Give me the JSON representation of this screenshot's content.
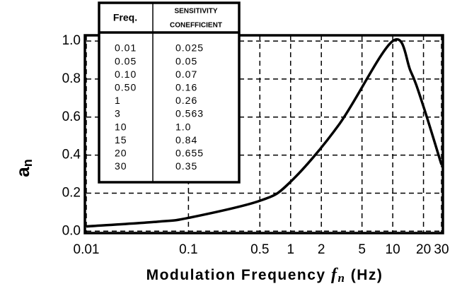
{
  "chart_data": {
    "type": "line",
    "xlabel": {
      "before": "Modulation Frequency ",
      "var": "f",
      "sub": "n",
      "after": " (Hz)"
    },
    "ylabel": {
      "main": "a",
      "sub": "n"
    },
    "x": [
      0.01,
      0.05,
      0.1,
      0.5,
      1,
      3,
      10,
      15,
      20,
      30
    ],
    "series": [
      {
        "color": "#000000",
        "values": [
          0.025,
          0.05,
          0.07,
          0.16,
          0.26,
          0.563,
          1.0,
          0.84,
          0.655,
          0.35
        ]
      }
    ],
    "xlog": true,
    "xlim": [
      0.01,
      30
    ],
    "xticks": [
      0.01,
      0.1,
      0.5,
      1,
      2,
      5,
      10,
      20,
      30
    ],
    "ylim": [
      -0.01,
      1.03
    ],
    "yticks": [
      {
        "value": 0,
        "label": "0.0"
      },
      0.2,
      0.4,
      0.6,
      0.8,
      {
        "value": 1,
        "label": "1.0"
      }
    ],
    "grid": true,
    "table": {
      "headers": [
        "Freq.",
        [
          "SENSITIVITY",
          "CONEFFICIENT"
        ]
      ],
      "rows": [
        [
          "0.01",
          "0.025"
        ],
        [
          "0.05",
          "0.05"
        ],
        [
          "0.10",
          "0.07"
        ],
        [
          "0.50",
          "0.16"
        ],
        [
          "1",
          "0.26"
        ],
        [
          "3",
          "0.563"
        ],
        [
          "10",
          "1.0"
        ],
        [
          "15",
          "0.84"
        ],
        [
          "20",
          "0.655"
        ],
        [
          "30",
          "0.35"
        ]
      ]
    }
  }
}
